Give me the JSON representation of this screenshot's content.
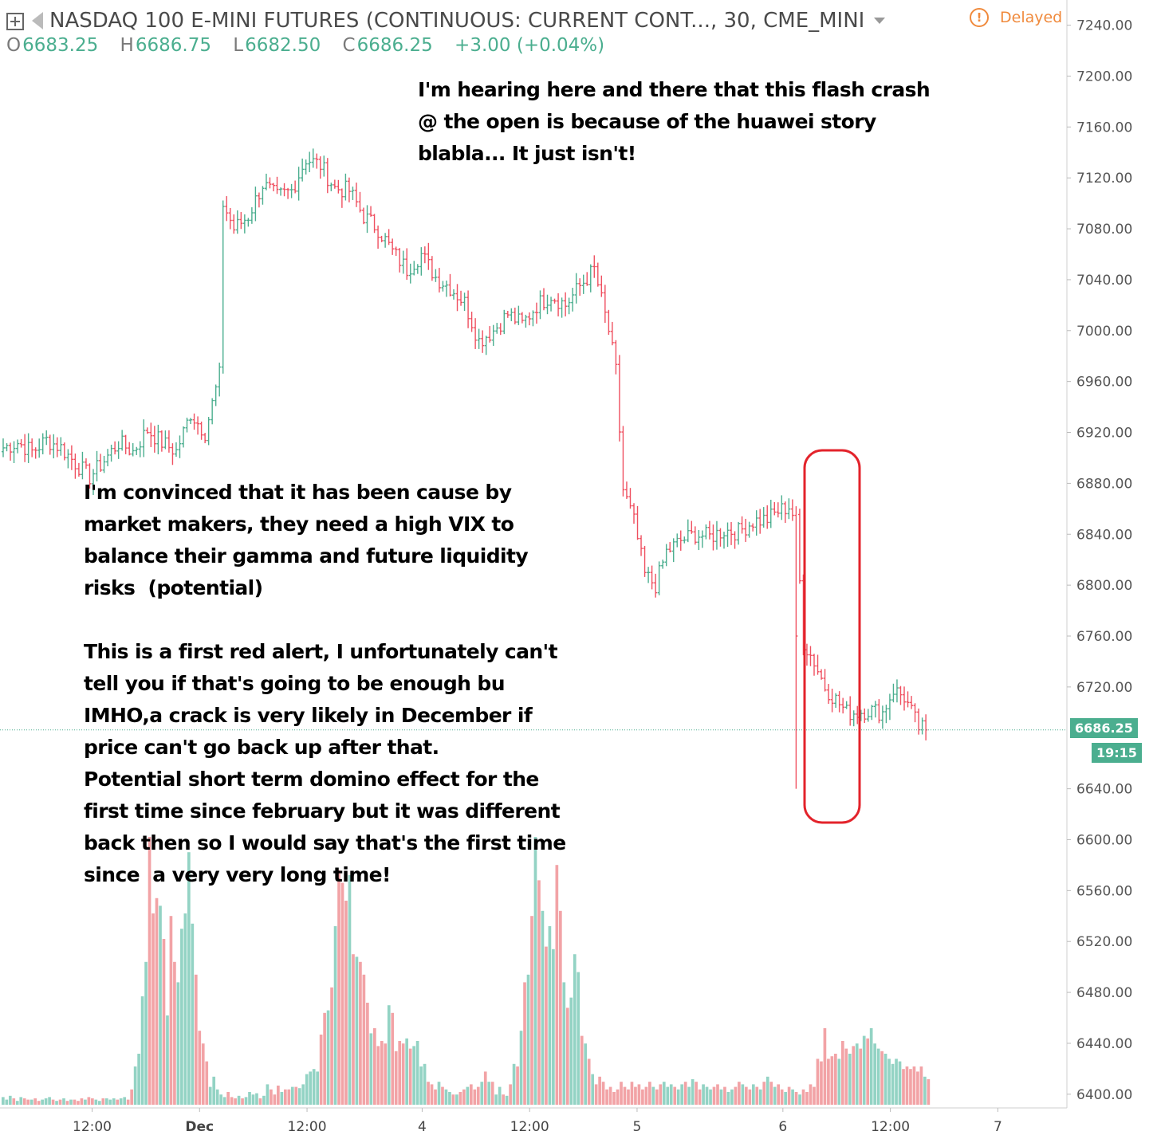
{
  "header": {
    "title": "NASDAQ 100 E-MINI FUTURES (CONTINUOUS: CURRENT CONT..., 30, CME_MINI",
    "open_key": "O",
    "open": "6683.25",
    "high_key": "H",
    "high": "6686.75",
    "low_key": "L",
    "low": "6682.50",
    "close_key": "C",
    "close": "6686.25",
    "change": "+3.00 (+0.04%)",
    "status": "Delayed"
  },
  "notes": {
    "top": "I'm hearing here and there that this flash crash\n@ the open is because of the huawei story\nblabla... It just isn't!",
    "main": "I'm convinced that it has been cause by\nmarket makers, they need a high VIX to\nbalance their gamma and future liquidity\nrisks  (potential)\n\nThis is a first red alert, I unfortunately can't\ntell you if that's going to be enough bu\nIMHO,a crack is very likely in December if\nprice can't go back up after that.\nPotential short term domino effect for the\nfirst time since february but it was different\nback then so I would say that's the first time\nsince  a very very long time!"
  },
  "price_label": "6686.25",
  "countdown_label": "19:15",
  "colors": {
    "up": "#4bae8f",
    "down": "#ef5060",
    "up_vol": "#93d3c4",
    "down_vol": "#f2a3a6",
    "highlight": "#e3232b",
    "axis_text": "#555555"
  },
  "chart_data": {
    "type": "ohlc",
    "y_axis": {
      "min": 6398,
      "max": 7246,
      "ticks": [
        "7240.00",
        "7200.00",
        "7160.00",
        "7120.00",
        "7080.00",
        "7040.00",
        "7000.00",
        "6960.00",
        "6920.00",
        "6880.00",
        "6840.00",
        "6800.00",
        "6760.00",
        "6720.00",
        "6640.00",
        "6600.00",
        "6560.00",
        "6520.00",
        "6480.00",
        "6440.00",
        "6400.00"
      ]
    },
    "x_axis": {
      "labels": [
        "12:00",
        "Dec",
        "4",
        "12:00",
        "12:00",
        "5",
        "6",
        "12:00",
        "7"
      ],
      "label_positions": [
        12,
        26,
        55,
        40,
        69,
        83,
        102,
        116,
        130
      ],
      "bold": [
        false,
        true,
        false,
        false,
        false,
        false,
        false,
        false,
        false
      ]
    },
    "current_price": 6686.25,
    "path": [
      [
        0,
        6908
      ],
      [
        4,
        6912
      ],
      [
        8,
        6905
      ],
      [
        12,
        6914
      ],
      [
        16,
        6908
      ],
      [
        20,
        6896
      ],
      [
        24,
        6885
      ],
      [
        28,
        6898
      ],
      [
        32,
        6912
      ],
      [
        36,
        6905
      ],
      [
        40,
        6922
      ],
      [
        44,
        6912
      ],
      [
        48,
        6905
      ],
      [
        52,
        6935
      ],
      [
        56,
        6920
      ],
      [
        60,
        6965
      ],
      [
        60,
        7045
      ],
      [
        61,
        7100
      ],
      [
        64,
        7080
      ],
      [
        68,
        7090
      ],
      [
        72,
        7115
      ],
      [
        76,
        7105
      ],
      [
        80,
        7110
      ],
      [
        84,
        7135
      ],
      [
        88,
        7130
      ],
      [
        92,
        7112
      ],
      [
        96,
        7110
      ],
      [
        100,
        7090
      ],
      [
        104,
        7080
      ],
      [
        108,
        7062
      ],
      [
        112,
        7048
      ],
      [
        116,
        7060
      ],
      [
        120,
        7042
      ],
      [
        124,
        7034
      ],
      [
        128,
        7022
      ],
      [
        132,
        6992
      ],
      [
        136,
        7000
      ],
      [
        140,
        7013
      ],
      [
        144,
        7005
      ],
      [
        148,
        7020
      ],
      [
        152,
        7028
      ],
      [
        156,
        7020
      ],
      [
        160,
        7035
      ],
      [
        164,
        7048
      ],
      [
        168,
        7000
      ],
      [
        170,
        6968
      ],
      [
        172,
        6875
      ],
      [
        175,
        6850
      ],
      [
        178,
        6808
      ],
      [
        181,
        6800
      ],
      [
        184,
        6826
      ],
      [
        188,
        6835
      ],
      [
        192,
        6840
      ],
      [
        196,
        6838
      ],
      [
        200,
        6843
      ],
      [
        204,
        6842
      ],
      [
        208,
        6850
      ],
      [
        212,
        6852
      ],
      [
        215,
        6858
      ],
      [
        218,
        6862
      ],
      [
        220,
        6850
      ],
      [
        222,
        6755
      ],
      [
        225,
        6740
      ],
      [
        228,
        6720
      ],
      [
        231,
        6710
      ],
      [
        234,
        6700
      ],
      [
        237,
        6700
      ],
      [
        240,
        6702
      ],
      [
        244,
        6700
      ],
      [
        247,
        6718
      ],
      [
        250,
        6712
      ],
      [
        254,
        6688
      ],
      [
        256,
        6686.25
      ]
    ],
    "bar_overrides": [
      {
        "i": 220,
        "high": 6862,
        "low": 6640,
        "close": 6760
      }
    ],
    "volume": [
      6,
      4,
      7,
      5,
      3,
      6,
      5,
      4,
      4,
      5,
      3,
      4,
      5,
      6,
      4,
      3,
      4,
      5,
      3,
      4,
      4,
      3,
      5,
      4,
      6,
      5,
      4,
      3,
      5,
      5,
      4,
      5,
      4,
      5,
      6,
      4,
      12,
      30,
      40,
      85,
      112,
      210,
      150,
      162,
      156,
      130,
      70,
      148,
      112,
      96,
      138,
      150,
      198,
      142,
      102,
      58,
      48,
      34,
      14,
      22,
      12,
      8,
      6,
      10,
      6,
      5,
      7,
      5,
      6,
      10,
      8,
      9,
      5,
      7,
      16,
      12,
      8,
      15,
      10,
      12,
      12,
      14,
      14,
      13,
      16,
      24,
      26,
      28,
      26,
      55,
      72,
      74,
      92,
      140,
      184,
      174,
      160,
      180,
      118,
      116,
      112,
      102,
      80,
      56,
      60,
      46,
      50,
      48,
      78,
      72,
      42,
      50,
      48,
      52,
      44,
      46,
      50,
      30,
      32,
      18,
      16,
      12,
      18,
      14,
      12,
      10,
      8,
      8,
      10,
      12,
      14,
      16,
      12,
      14,
      18,
      26,
      18,
      18,
      8,
      14,
      8,
      7,
      16,
      32,
      30,
      58,
      96,
      102,
      148,
      210,
      176,
      152,
      124,
      140,
      122,
      188,
      152,
      96,
      76,
      84,
      118,
      104,
      54,
      48,
      36,
      24,
      16,
      22,
      18,
      12,
      14,
      10,
      12,
      18,
      14,
      12,
      18,
      14,
      16,
      12,
      14,
      18,
      14,
      12,
      16,
      18,
      14,
      16,
      14,
      12,
      16,
      18,
      14,
      20,
      18,
      12,
      16,
      14,
      12,
      14,
      16,
      12,
      14,
      10,
      12,
      14,
      18,
      16,
      14,
      12,
      16,
      14,
      12,
      18,
      22,
      18,
      14,
      16,
      12,
      10,
      14,
      12,
      10,
      8,
      12,
      10,
      16,
      14,
      36,
      34,
      60,
      36,
      38,
      40,
      36,
      50,
      44,
      40,
      46,
      48,
      44,
      54,
      52,
      60,
      48,
      44,
      42,
      40,
      36,
      32,
      36,
      34,
      28,
      30,
      28,
      30,
      26,
      30,
      22,
      20
    ]
  }
}
